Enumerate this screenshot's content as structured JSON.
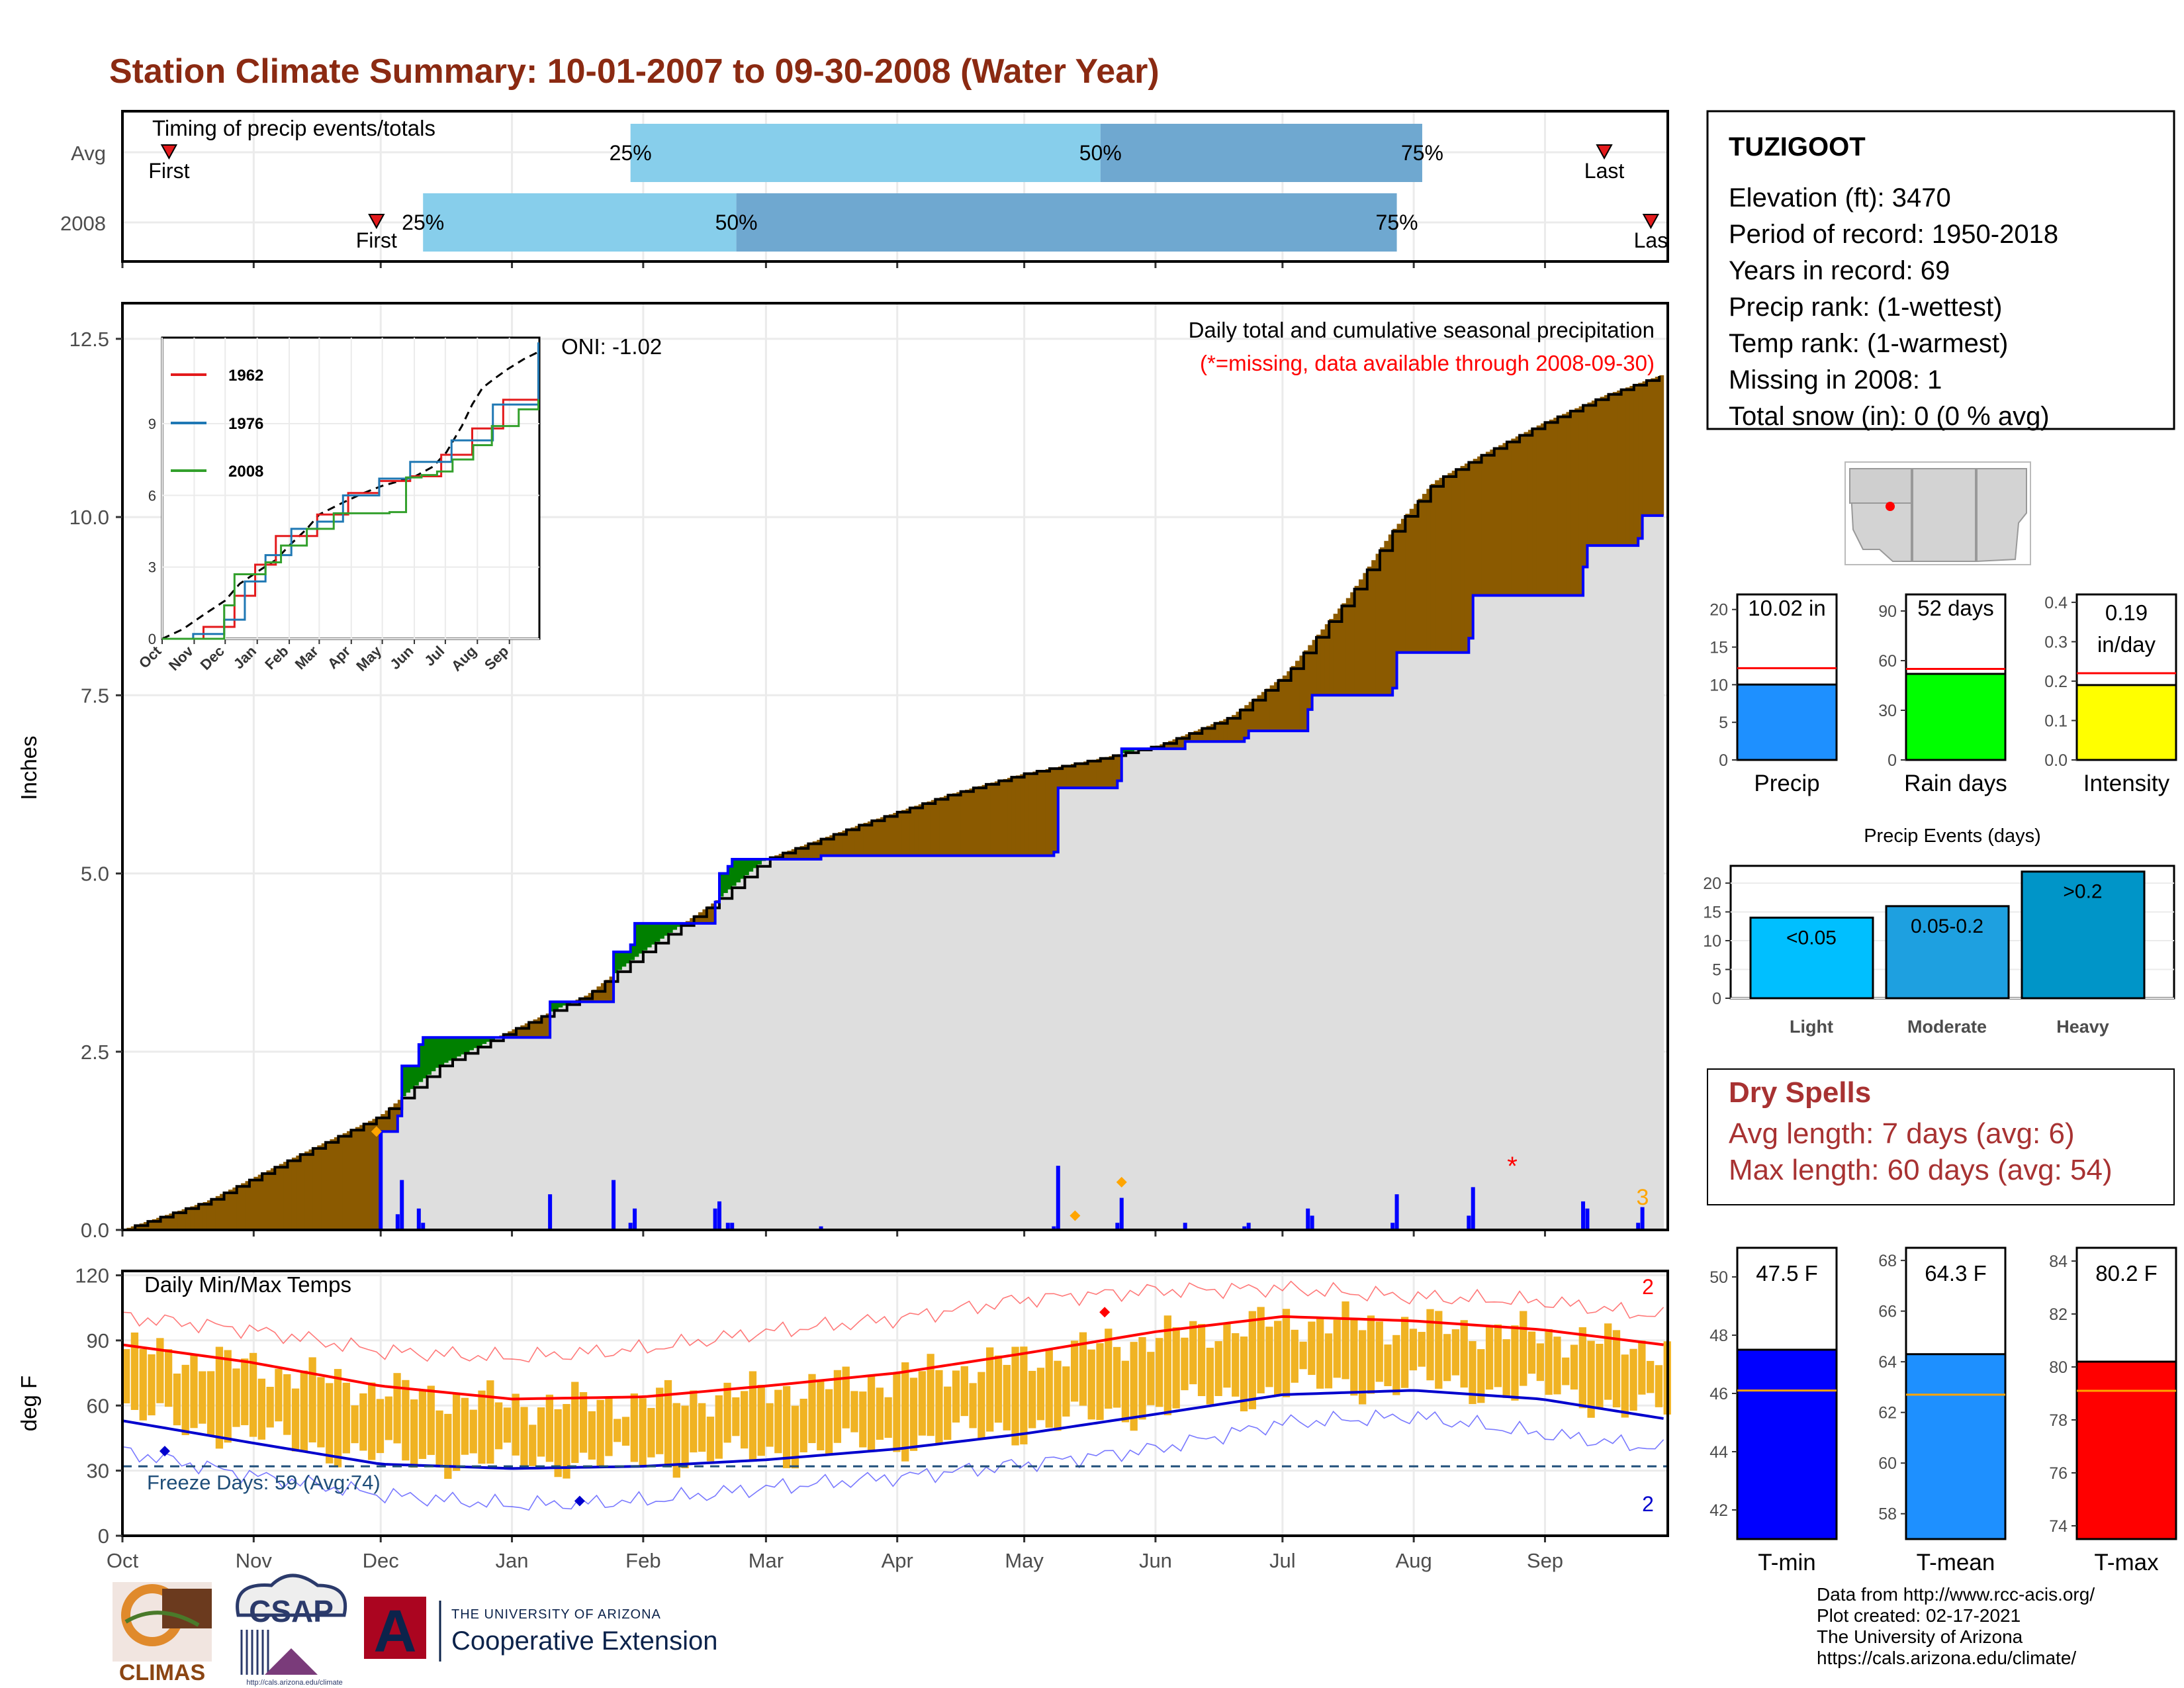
{
  "title": "Station Climate Summary: 10-01-2007 to 09-30-2008 (Water Year)",
  "timing_panel": {
    "label": "Timing of precip events/totals",
    "rows": [
      "Avg",
      "2008"
    ],
    "first_label": "First",
    "last_label": "Last",
    "last_label_2008": "Las",
    "pct25": "25%",
    "pct50": "50%",
    "pct75": "75%",
    "avg": {
      "first_day": 11,
      "p25": 120,
      "p50": 231,
      "p75": 307,
      "last_day": 350
    },
    "y2008": {
      "first_day": 60,
      "p25": 71,
      "p50": 145,
      "p75": 301,
      "last_day": 361
    },
    "colors": {
      "light": "#87ceeb",
      "dark": "#6fa8d0",
      "marker": "#e31a1c"
    }
  },
  "months": [
    "Oct",
    "Nov",
    "Dec",
    "Jan",
    "Feb",
    "Mar",
    "Apr",
    "May",
    "Jun",
    "Jul",
    "Aug",
    "Sep"
  ],
  "precip_panel": {
    "ylabel": "Inches",
    "yticks": [
      "0.0",
      "2.5",
      "5.0",
      "7.5",
      "10.0",
      "12.5"
    ],
    "caption": "Daily total and cumulative seasonal precipitation",
    "missing_note": "(*=missing, data available through 2008-09-30)",
    "oni": "ONI: -1.02",
    "count_label": "3",
    "missing_marker": "*",
    "colors": {
      "cum": "#0000ff",
      "avg": "#000000",
      "above": "#008000",
      "below": "#8b5a00",
      "fill": "#dedede",
      "bars": "#0000ff",
      "diamond": "#ffa500"
    }
  },
  "inset": {
    "series": [
      {
        "name": "1962",
        "color": "#e31a1c"
      },
      {
        "name": "1976",
        "color": "#1f78b4"
      },
      {
        "name": "2008",
        "color": "#33a02c"
      }
    ],
    "yticks": [
      "0",
      "3",
      "6",
      "9"
    ],
    "months": [
      "Oct",
      "Nov",
      "Dec",
      "Jan",
      "Feb",
      "Mar",
      "Apr",
      "May",
      "Jun",
      "Jul",
      "Aug",
      "Sep"
    ]
  },
  "temp_panel": {
    "ylabel": "deg F",
    "label": "Daily Min/Max Temps",
    "yticks": [
      "0",
      "30",
      "60",
      "90",
      "120"
    ],
    "freeze_label": "Freeze Days: 59 (Avg:74)",
    "max_record_count": "2",
    "min_record_count": "2",
    "colors": {
      "bars": "#f0b323",
      "max": "#ff0000",
      "min": "#0000cd",
      "freeze": "#1f4e79"
    }
  },
  "station": {
    "name": "TUZIGOOT",
    "lines": [
      "Elevation (ft): 3470",
      "Period of record: 1950-2018",
      "Years in record: 69",
      "Precip rank:  (1-wettest)",
      "Temp rank:  (1-warmest)",
      "Missing in 2008: 1",
      "Total snow (in): 0 (0 % avg)"
    ]
  },
  "stat_bars": [
    {
      "label": "Precip",
      "value_text": "10.02 in",
      "yticks": [
        "0",
        "5",
        "10",
        "15",
        "20"
      ],
      "color": "#1e90ff"
    },
    {
      "label": "Rain days",
      "value_text": "52 days",
      "yticks": [
        "0",
        "30",
        "60",
        "90"
      ],
      "color": "#00ff00"
    },
    {
      "label": "Intensity",
      "value_text": "0.19 in/day",
      "value_line1": "0.19",
      "value_line2": "in/day",
      "yticks": [
        "0.0",
        "0.1",
        "0.2",
        "0.3",
        "0.4"
      ],
      "color": "#ffff00"
    }
  ],
  "precip_events": {
    "title": "Precip Events (days)",
    "yticks": [
      "0",
      "5",
      "10",
      "15",
      "20"
    ],
    "bars": [
      {
        "category": "Light",
        "label": "<0.05",
        "value": 14,
        "color": "#00bfff"
      },
      {
        "category": "Moderate",
        "label": "0.05-0.2",
        "value": 16,
        "color": "#1ea0e0"
      },
      {
        "category": "Heavy",
        "label": ">0.2",
        "value": 22,
        "color": "#0095c8"
      }
    ]
  },
  "dry_spells": {
    "title": "Dry Spells",
    "avg": "Avg length: 7 days (avg: 6)",
    "max": "Max length: 60 days (avg: 54)"
  },
  "temp_bars": [
    {
      "label": "T-min",
      "value_text": "47.5 F",
      "yticks": [
        "42",
        "44",
        "46",
        "48",
        "50"
      ],
      "color": "#0000ff"
    },
    {
      "label": "T-mean",
      "value_text": "64.3 F",
      "yticks": [
        "58",
        "60",
        "62",
        "64",
        "66",
        "68"
      ],
      "color": "#1e90ff"
    },
    {
      "label": "T-max",
      "value_text": "80.2 F",
      "yticks": [
        "74",
        "76",
        "78",
        "80",
        "82",
        "84"
      ],
      "color": "#ff0000"
    }
  ],
  "footer": {
    "lines": [
      "Data from http://www.rcc-acis.org/",
      "Plot created: 02-17-2021",
      "The University of Arizona",
      "https://cals.arizona.edu/climate/"
    ],
    "logo_climas": "CLIMAS",
    "logo_csap": "CSAP",
    "logo_csap_url": "http://cals.arizona.edu/climate",
    "ua_line1": "THE UNIVERSITY OF ARIZONA",
    "ua_line2": "Cooperative Extension",
    "ua_letter": "A"
  },
  "chart_data": [
    {
      "type": "line",
      "title": "Daily total and cumulative seasonal precipitation",
      "ylabel": "Inches",
      "x_units": "day of water year (0 = Oct 1)",
      "ylim": [
        0,
        13
      ],
      "series": [
        {
          "name": "Average cumulative",
          "x": [
            0,
            20,
            40,
            61,
            75,
            92,
            110,
            123,
            140,
            152,
            175,
            195,
            213,
            230,
            245,
            262,
            275,
            290,
            300,
            310,
            322,
            335,
            350,
            364
          ],
          "y": [
            0,
            0.4,
            1.0,
            1.6,
            2.3,
            2.8,
            3.3,
            3.9,
            4.6,
            5.2,
            5.7,
            6.1,
            6.4,
            6.6,
            6.8,
            7.2,
            7.8,
            8.9,
            9.8,
            10.5,
            10.9,
            11.3,
            11.7,
            12.0
          ]
        },
        {
          "name": "2008 cumulative",
          "x": [
            0,
            60,
            61,
            65,
            66,
            70,
            71,
            100,
            101,
            115,
            116,
            120,
            121,
            140,
            141,
            143,
            144,
            165,
            166,
            220,
            221,
            235,
            236,
            250,
            251,
            265,
            266,
            280,
            281,
            300,
            301,
            318,
            319,
            345,
            346,
            358,
            359,
            364
          ],
          "y": [
            0,
            0,
            1.38,
            1.6,
            2.3,
            2.6,
            2.7,
            2.7,
            3.2,
            3.2,
            3.9,
            4.0,
            4.3,
            4.6,
            5.0,
            5.1,
            5.2,
            5.25,
            5.25,
            5.3,
            6.2,
            6.3,
            6.75,
            6.75,
            6.85,
            6.9,
            7.0,
            7.3,
            7.5,
            7.6,
            8.1,
            8.3,
            8.9,
            9.3,
            9.6,
            9.7,
            10.02,
            10.02
          ]
        }
      ]
    },
    {
      "type": "line",
      "title": "",
      "legend": [
        "1962",
        "1976",
        "2008"
      ],
      "x_units": "day of water year",
      "ylim": [
        0,
        12.6
      ],
      "series": [
        {
          "name": "1962",
          "x": [
            0,
            40,
            70,
            90,
            110,
            150,
            180,
            210,
            240,
            270,
            300,
            330,
            364
          ],
          "y": [
            0,
            0.5,
            1.8,
            3.1,
            4.3,
            5.2,
            6.1,
            6.6,
            6.8,
            7.7,
            8.8,
            10.0,
            11.8
          ]
        },
        {
          "name": "1976",
          "x": [
            0,
            30,
            60,
            80,
            100,
            125,
            150,
            175,
            210,
            240,
            280,
            320,
            364
          ],
          "y": [
            0,
            0.2,
            0.8,
            2.4,
            3.5,
            4.6,
            4.9,
            6.0,
            6.7,
            7.4,
            8.3,
            9.8,
            12.4
          ]
        },
        {
          "name": "2008",
          "x": [
            0,
            60,
            70,
            100,
            115,
            140,
            166,
            220,
            236,
            251,
            266,
            281,
            301,
            319,
            345,
            364
          ],
          "y": [
            0,
            1.4,
            2.7,
            3.2,
            3.9,
            4.6,
            5.25,
            5.3,
            6.75,
            6.85,
            7.0,
            7.5,
            8.1,
            8.9,
            9.6,
            10.02
          ]
        }
      ]
    },
    {
      "type": "line",
      "title": "Daily Min/Max Temps",
      "ylabel": "deg F",
      "ylim": [
        0,
        120
      ],
      "series": [
        {
          "name": "Avg max",
          "x": [
            0,
            30,
            61,
            92,
            123,
            152,
            183,
            213,
            244,
            274,
            305,
            335,
            364
          ],
          "y": [
            88,
            80,
            69,
            63,
            64,
            69,
            75,
            84,
            94,
            101,
            99,
            95,
            88
          ]
        },
        {
          "name": "Avg min",
          "x": [
            0,
            30,
            61,
            92,
            123,
            152,
            183,
            213,
            244,
            274,
            305,
            335,
            364
          ],
          "y": [
            53,
            43,
            33,
            31,
            32,
            35,
            40,
            47,
            56,
            65,
            67,
            63,
            54
          ]
        },
        {
          "name": "Record max",
          "x": [
            0,
            30,
            61,
            92,
            123,
            152,
            183,
            213,
            244,
            274,
            305,
            335,
            364
          ],
          "y": [
            101,
            95,
            85,
            82,
            86,
            94,
            100,
            109,
            113,
            114,
            110,
            108,
            101
          ]
        },
        {
          "name": "Record min",
          "x": [
            0,
            30,
            61,
            92,
            123,
            152,
            183,
            213,
            244,
            274,
            305,
            335,
            364
          ],
          "y": [
            39,
            28,
            19,
            14,
            16,
            22,
            27,
            33,
            40,
            52,
            55,
            47,
            40
          ]
        },
        {
          "name": "Freeze threshold",
          "x": [
            0,
            364
          ],
          "y": [
            32,
            32
          ]
        }
      ]
    },
    {
      "type": "bar",
      "title": "Precip Events (days)",
      "categories": [
        "Light",
        "Moderate",
        "Heavy"
      ],
      "values": [
        14,
        16,
        22
      ],
      "ylim": [
        0,
        23
      ]
    },
    {
      "type": "bar",
      "title": "",
      "categories": [
        "Precip",
        "Rain days",
        "Intensity"
      ],
      "values": [
        10.02,
        52,
        0.19
      ],
      "averages": [
        12.2,
        55,
        0.22
      ]
    },
    {
      "type": "bar",
      "title": "",
      "categories": [
        "T-min",
        "T-mean",
        "T-max"
      ],
      "values": [
        47.5,
        64.3,
        80.2
      ],
      "averages": [
        46.1,
        62.7,
        79.1
      ]
    }
  ]
}
